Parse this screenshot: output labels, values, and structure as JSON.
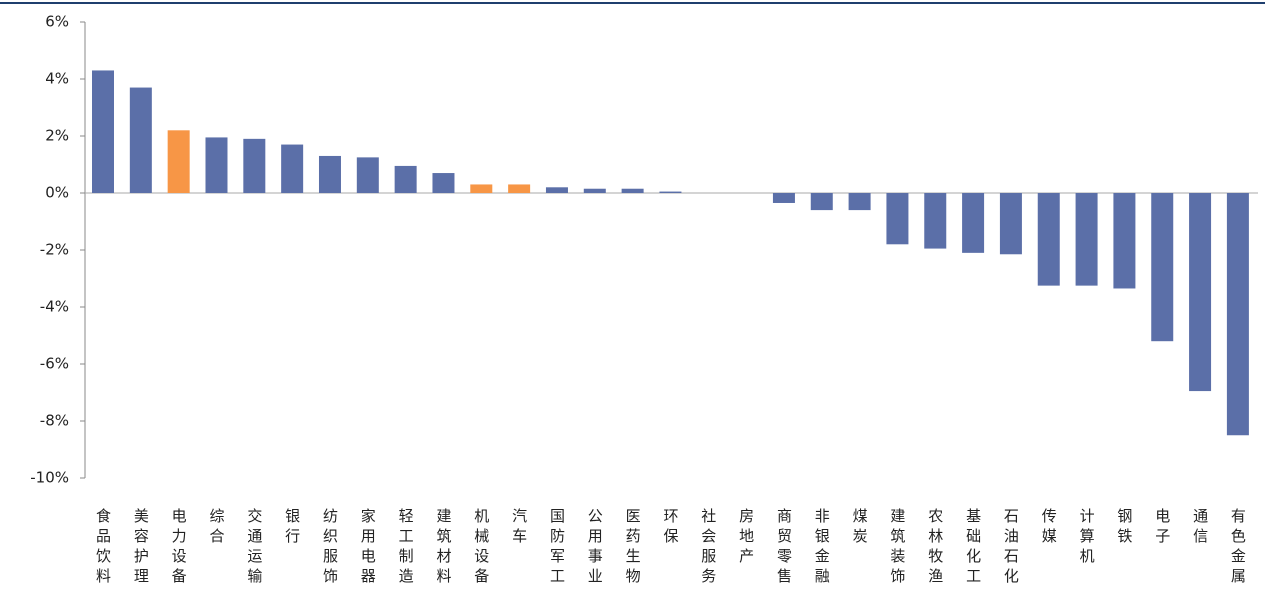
{
  "chart_data": {
    "type": "bar",
    "categories": [
      "食品饮料",
      "美容护理",
      "电力设备",
      "综合",
      "交通运输",
      "银行",
      "纺织服饰",
      "家用电器",
      "轻工制造",
      "建筑材料",
      "机械设备",
      "汽车",
      "国防军工",
      "公用事业",
      "医药生物",
      "环保",
      "社会服务",
      "房地产",
      "商贸零售",
      "非银金融",
      "煤炭",
      "建筑装饰",
      "农林牧渔",
      "基础化工",
      "石油石化",
      "传媒",
      "计算机",
      "钢铁",
      "电子",
      "通信",
      "有色金属"
    ],
    "values": [
      4.3,
      3.7,
      2.2,
      1.95,
      1.9,
      1.7,
      1.3,
      1.25,
      0.95,
      0.7,
      0.3,
      0.3,
      0.2,
      0.15,
      0.15,
      0.05,
      0,
      0,
      -0.35,
      -0.6,
      -0.6,
      -1.8,
      -1.95,
      -2.1,
      -2.15,
      -3.25,
      -3.25,
      -3.35,
      -5.2,
      -6.95,
      -8.5
    ],
    "colors": [
      "#5b6fa8",
      "#5b6fa8",
      "#f79646",
      "#5b6fa8",
      "#5b6fa8",
      "#5b6fa8",
      "#5b6fa8",
      "#5b6fa8",
      "#5b6fa8",
      "#5b6fa8",
      "#f79646",
      "#f79646",
      "#5b6fa8",
      "#5b6fa8",
      "#5b6fa8",
      "#5b6fa8",
      "#5b6fa8",
      "#5b6fa8",
      "#5b6fa8",
      "#5b6fa8",
      "#5b6fa8",
      "#5b6fa8",
      "#5b6fa8",
      "#5b6fa8",
      "#5b6fa8",
      "#5b6fa8",
      "#5b6fa8",
      "#5b6fa8",
      "#5b6fa8",
      "#5b6fa8",
      "#5b6fa8"
    ],
    "ylim": [
      -10,
      6
    ],
    "yticks": [
      {
        "value": -10,
        "label": "-10%"
      },
      {
        "value": -8,
        "label": "-8%"
      },
      {
        "value": -6,
        "label": "-6%"
      },
      {
        "value": -4,
        "label": "-4%"
      },
      {
        "value": -2,
        "label": "-2%"
      },
      {
        "value": 0,
        "label": "0%"
      },
      {
        "value": 2,
        "label": "2%"
      },
      {
        "value": 4,
        "label": "4%"
      },
      {
        "value": 6,
        "label": "6%"
      }
    ],
    "grid": false
  }
}
